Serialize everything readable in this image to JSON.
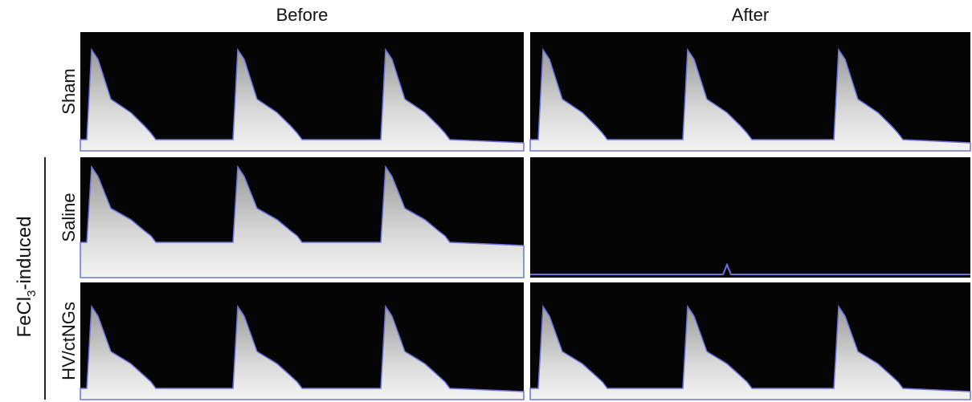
{
  "columns": [
    "Before",
    "After"
  ],
  "rows": [
    "Sham",
    "Saline",
    "HV/ctNGs"
  ],
  "group_label": {
    "text": "FeCl",
    "subscript": "3",
    "suffix": "-induced"
  }
}
